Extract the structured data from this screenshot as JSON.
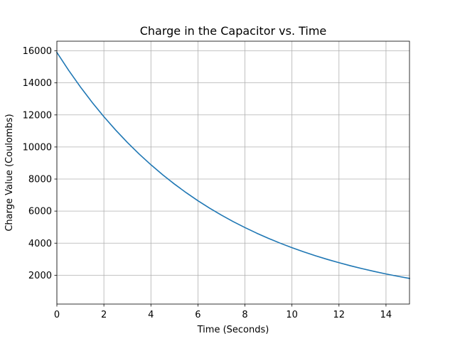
{
  "chart_data": {
    "type": "line",
    "title": "Charge in the Capacitor vs. Time",
    "xlabel": "Time (Seconds)",
    "ylabel": "Charge Value (Coulombs)",
    "xlim": [
      0,
      15
    ],
    "ylim": [
      200,
      16600
    ],
    "xticks": [
      0,
      2,
      4,
      6,
      8,
      10,
      12,
      14
    ],
    "yticks": [
      2000,
      4000,
      6000,
      8000,
      10000,
      12000,
      14000,
      16000
    ],
    "grid": true,
    "legend": "none",
    "series": [
      {
        "color": "#1f77b4",
        "x": [
          0,
          0.5,
          1,
          1.5,
          2,
          2.5,
          3,
          3.5,
          4,
          4.5,
          5,
          5.5,
          6,
          6.5,
          7,
          7.5,
          8,
          8.5,
          9,
          9.5,
          10,
          10.5,
          11,
          11.5,
          12,
          12.5,
          13,
          13.5,
          14,
          14.5,
          15
        ],
        "y": [
          15900,
          14785,
          13749,
          12785,
          11889,
          11056,
          10281,
          9561,
          8891,
          8267,
          7688,
          7149,
          6648,
          6182,
          5749,
          5346,
          4972,
          4623,
          4299,
          3998,
          3718,
          3457,
          3215,
          2990,
          2780,
          2585,
          2404,
          2236,
          2079,
          1933,
          1798
        ]
      }
    ]
  }
}
